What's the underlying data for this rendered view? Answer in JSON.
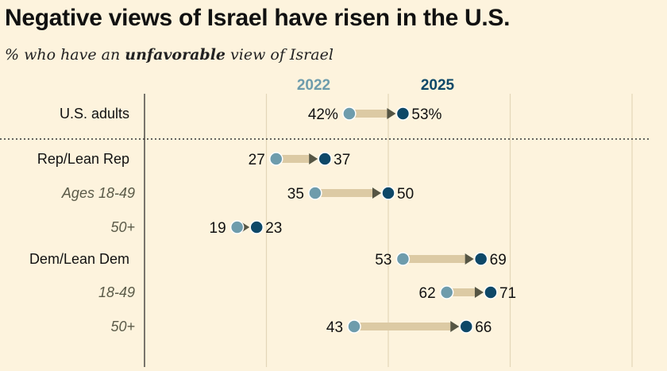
{
  "chart_data": {
    "type": "dot-arrow",
    "title": "Negative views of Israel have risen in the U.S.",
    "subtitle": {
      "prefix": "% who have an ",
      "emphasis": "unfavorable",
      "suffix": " view of Israel"
    },
    "series": [
      {
        "name": "2022",
        "color": "#6e9cac"
      },
      {
        "name": "2025",
        "color": "#0e4868"
      }
    ],
    "xlim": [
      0,
      100
    ],
    "grid": true,
    "rows": [
      {
        "label": "U.S. adults",
        "group": "total",
        "v2022": 42,
        "v2025": 53,
        "v2022_label": "42%",
        "v2025_label": "53%"
      },
      {
        "label": "Rep/Lean Rep",
        "group": "party",
        "v2022": 27,
        "v2025": 37,
        "v2022_label": "27",
        "v2025_label": "37"
      },
      {
        "label": "Ages 18-49",
        "group": "sub",
        "v2022": 35,
        "v2025": 50,
        "v2022_label": "35",
        "v2025_label": "50"
      },
      {
        "label": "50+",
        "group": "sub",
        "v2022": 19,
        "v2025": 23,
        "v2022_label": "19",
        "v2025_label": "23"
      },
      {
        "label": "Dem/Lean Dem",
        "group": "party",
        "v2022": 53,
        "v2025": 69,
        "v2022_label": "53",
        "v2025_label": "69"
      },
      {
        "label": "18-49",
        "group": "sub",
        "v2022": 62,
        "v2025": 71,
        "v2022_label": "62",
        "v2025_label": "71"
      },
      {
        "label": "50+",
        "group": "sub",
        "v2022": 43,
        "v2025": 66,
        "v2022_label": "43",
        "v2025_label": "66"
      }
    ],
    "colors": {
      "background": "#fdf3dd",
      "arrow_bar": "#dccaa4",
      "arrow_head": "#555544",
      "grid": "#e4d6b8",
      "axis": "#222222"
    }
  }
}
